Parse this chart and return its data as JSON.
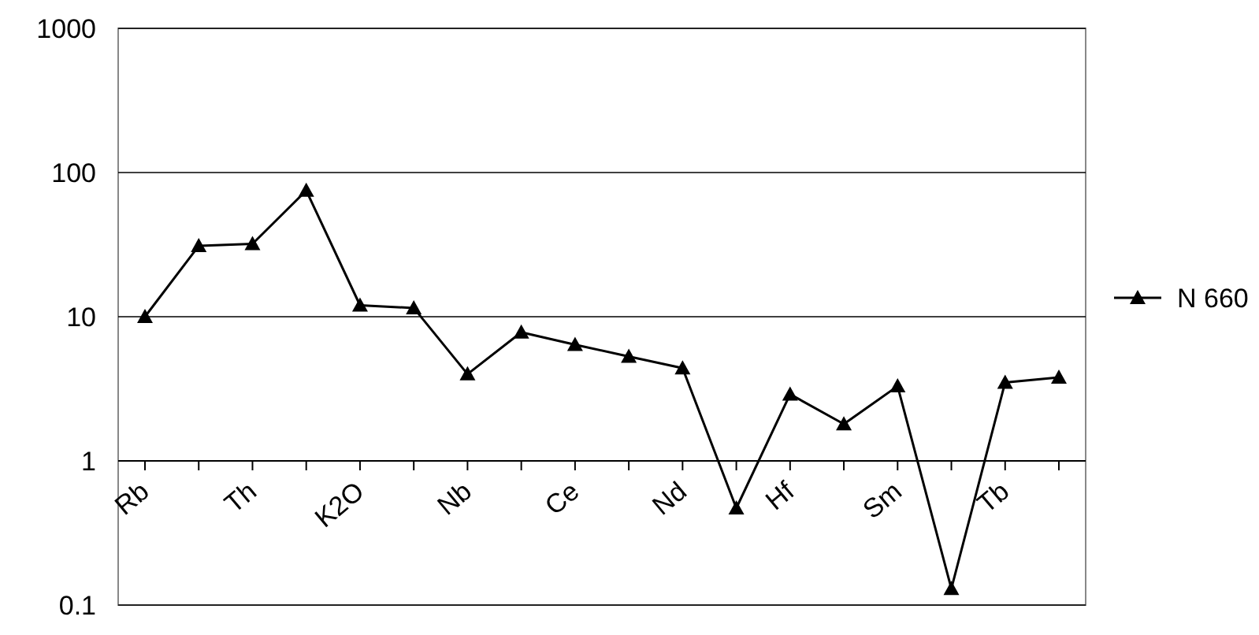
{
  "chart_data": {
    "type": "line",
    "categories": [
      "Rb",
      null,
      "Th",
      null,
      "K2O",
      null,
      "Nb",
      null,
      "Ce",
      null,
      "Nd",
      null,
      "Hf",
      null,
      "Sm",
      null,
      "Tb",
      null
    ],
    "series": [
      {
        "name": "N 660",
        "color": "#000000",
        "values": [
          10,
          31,
          32,
          75,
          12,
          11.5,
          4,
          7.8,
          6.4,
          5.3,
          4.4,
          0.47,
          2.9,
          1.8,
          3.3,
          0.13,
          3.5,
          3.8
        ]
      }
    ],
    "log": true,
    "ylim": [
      0.1,
      1000
    ],
    "yticks": [
      0.1,
      1,
      10,
      100,
      1000
    ],
    "grid": "y",
    "legend": "right",
    "marker": "triangle",
    "line_style": "solid"
  }
}
